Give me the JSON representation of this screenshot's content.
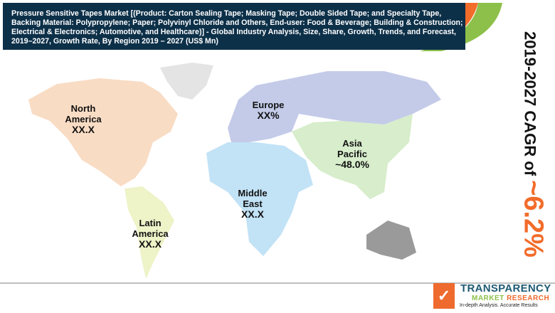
{
  "header": {
    "title": "Pressure Sensitive Tapes Market [(Product: Carton Sealing Tape; Masking Tape; Double Sided Tape; and Specialty Tape, Backing Material: Polypropylene; Paper; Polyvinyl Chloride and Others, End-user: Food & Beverage; Building & Construction; Electrical & Electronics; Automotive, and Healthcare)] - Global Industry Analysis, Size, Share, Growth, Trends, and Forecast, 2019–2027, Growth Rate, By Region 2019 – 2027 (US$ Mn)",
    "colors": {
      "background": "#0d3049",
      "accent_orange": "#f26c2a",
      "accent_green": "#8dc04a"
    }
  },
  "regions": [
    {
      "name": "North America",
      "value": "XX.X",
      "color": "#f9dcc4"
    },
    {
      "name": "Europe",
      "value": "XX%",
      "color": "#c3cbe8"
    },
    {
      "name": "Asia Pacific",
      "value": "~48.0%",
      "color": "#d7edcb"
    },
    {
      "name": "Middle East",
      "value": "XX.X",
      "color": "#c2e2f6"
    },
    {
      "name": "Latin America",
      "value": "XX.X",
      "color": "#eef3c8"
    }
  ],
  "cagr": {
    "prefix": "2019-2027 CAGR of ",
    "value": "~6.2%"
  },
  "logo": {
    "line1": "TRANSPARENCY",
    "line2a": "MARKET",
    "line2b": "RESEARCH",
    "tagline": "In-depth Analysis. Accurate Results"
  }
}
